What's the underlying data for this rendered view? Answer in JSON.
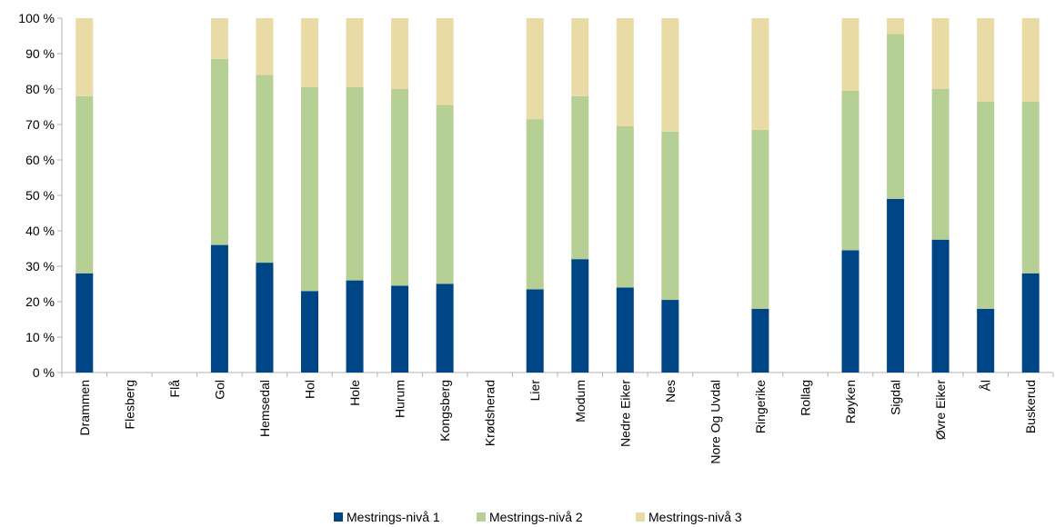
{
  "chart_data": {
    "type": "bar",
    "stacked": true,
    "categories": [
      "Drammen",
      "Flesberg",
      "Flå",
      "Gol",
      "Hemsedal",
      "Hol",
      "Hole",
      "Hurum",
      "Kongsberg",
      "Krødsherad",
      "Lier",
      "Modum",
      "Nedre Eiker",
      "Nes",
      "Nore Og Uvdal",
      "Ringerike",
      "Rollag",
      "Røyken",
      "Sigdal",
      "Øvre Eiker",
      "Ål",
      "Buskerud"
    ],
    "series": [
      {
        "name": "Mestrings-nivå 1",
        "color": "#004586",
        "values": [
          28,
          0,
          0,
          36,
          31,
          23,
          26,
          24.5,
          25,
          0,
          23.5,
          32,
          24,
          20.5,
          0,
          18,
          0,
          34.5,
          49,
          37.5,
          18,
          28
        ]
      },
      {
        "name": "Mestrings-nivå 2",
        "color": "#b5cf95",
        "values": [
          50,
          0,
          0,
          52.5,
          53,
          57.5,
          54.5,
          55.5,
          50.5,
          0,
          48,
          46,
          45.5,
          47.5,
          0,
          50.5,
          0,
          45,
          46.5,
          42.5,
          58.5,
          48.5
        ]
      },
      {
        "name": "Mestrings-nivå 3",
        "color": "#e9dba6",
        "values": [
          22,
          0,
          0,
          11.5,
          16,
          19.5,
          19.5,
          20,
          24.5,
          0,
          28.5,
          22,
          30.5,
          32,
          0,
          31.5,
          0,
          20.5,
          4.5,
          20,
          23.5,
          23.5
        ]
      }
    ],
    "yticks": [
      "0 %",
      "10 %",
      "20 %",
      "30 %",
      "40 %",
      "50 %",
      "60 %",
      "70 %",
      "80 %",
      "90 %",
      "100 %"
    ],
    "ylim": [
      0,
      100
    ],
    "grid": false,
    "legend": "bottom"
  }
}
